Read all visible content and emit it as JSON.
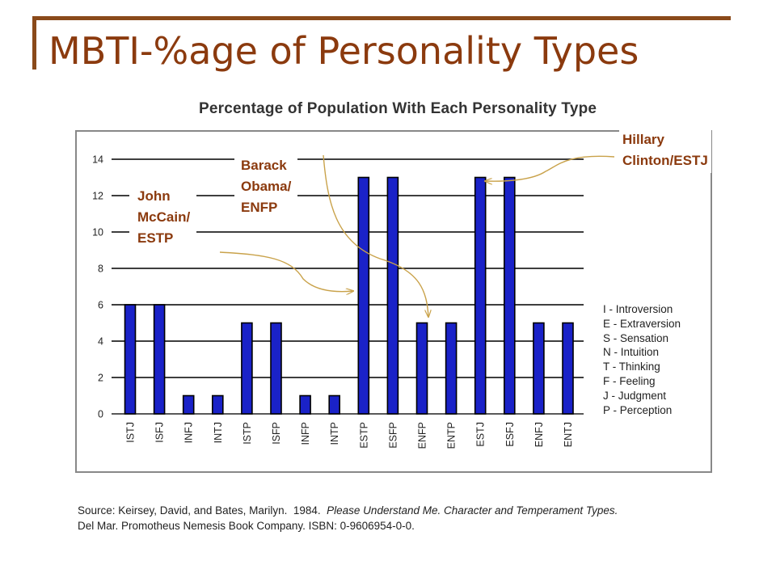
{
  "slide": {
    "title": "MBTI-%age of Personality Types"
  },
  "chart_data": {
    "type": "bar",
    "title": "Percentage of Population With Each Personality Type",
    "categories": [
      "ISTJ",
      "ISFJ",
      "INFJ",
      "INTJ",
      "ISTP",
      "ISFP",
      "INFP",
      "INTP",
      "ESTP",
      "ESFP",
      "ENFP",
      "ENTP",
      "ESTJ",
      "ESFJ",
      "ENFJ",
      "ENTJ"
    ],
    "values": [
      6,
      6,
      1,
      1,
      5,
      5,
      1,
      1,
      13,
      13,
      5,
      5,
      13,
      13,
      5,
      5
    ],
    "ylim": [
      0,
      14
    ],
    "yticks": [
      "0",
      "2",
      "4",
      "6",
      "8",
      "10",
      "12",
      "14"
    ],
    "grid": true,
    "bar_color": "#1a22c8",
    "legend_items": [
      "I - Introversion",
      "E - Extraversion",
      "S - Sensation",
      "N - Intuition",
      "T - Thinking",
      "F - Feeling",
      "J - Judgment",
      "P - Perception"
    ]
  },
  "annotations": {
    "mccain": [
      "John",
      "McCain/",
      "ESTP"
    ],
    "obama": [
      "Barack",
      "Obama/",
      "ENFP"
    ],
    "clinton": [
      "Hillary",
      "Clinton/ESTJ"
    ],
    "color": "#8b3a0e",
    "arrow_color": "#c9a24a"
  },
  "source": {
    "prefix": "Source: Keirsey, David, and Bates, Marilyn.  1984.  ",
    "italic": "Please Understand Me.  Character and Temperament Types.",
    "line2": "Del Mar.  Promotheus Nemesis Book Company.  ISBN: 0-9606954-0-0."
  },
  "colors": {
    "title": "#8b3a0e",
    "decor": "#8a4a1a"
  }
}
